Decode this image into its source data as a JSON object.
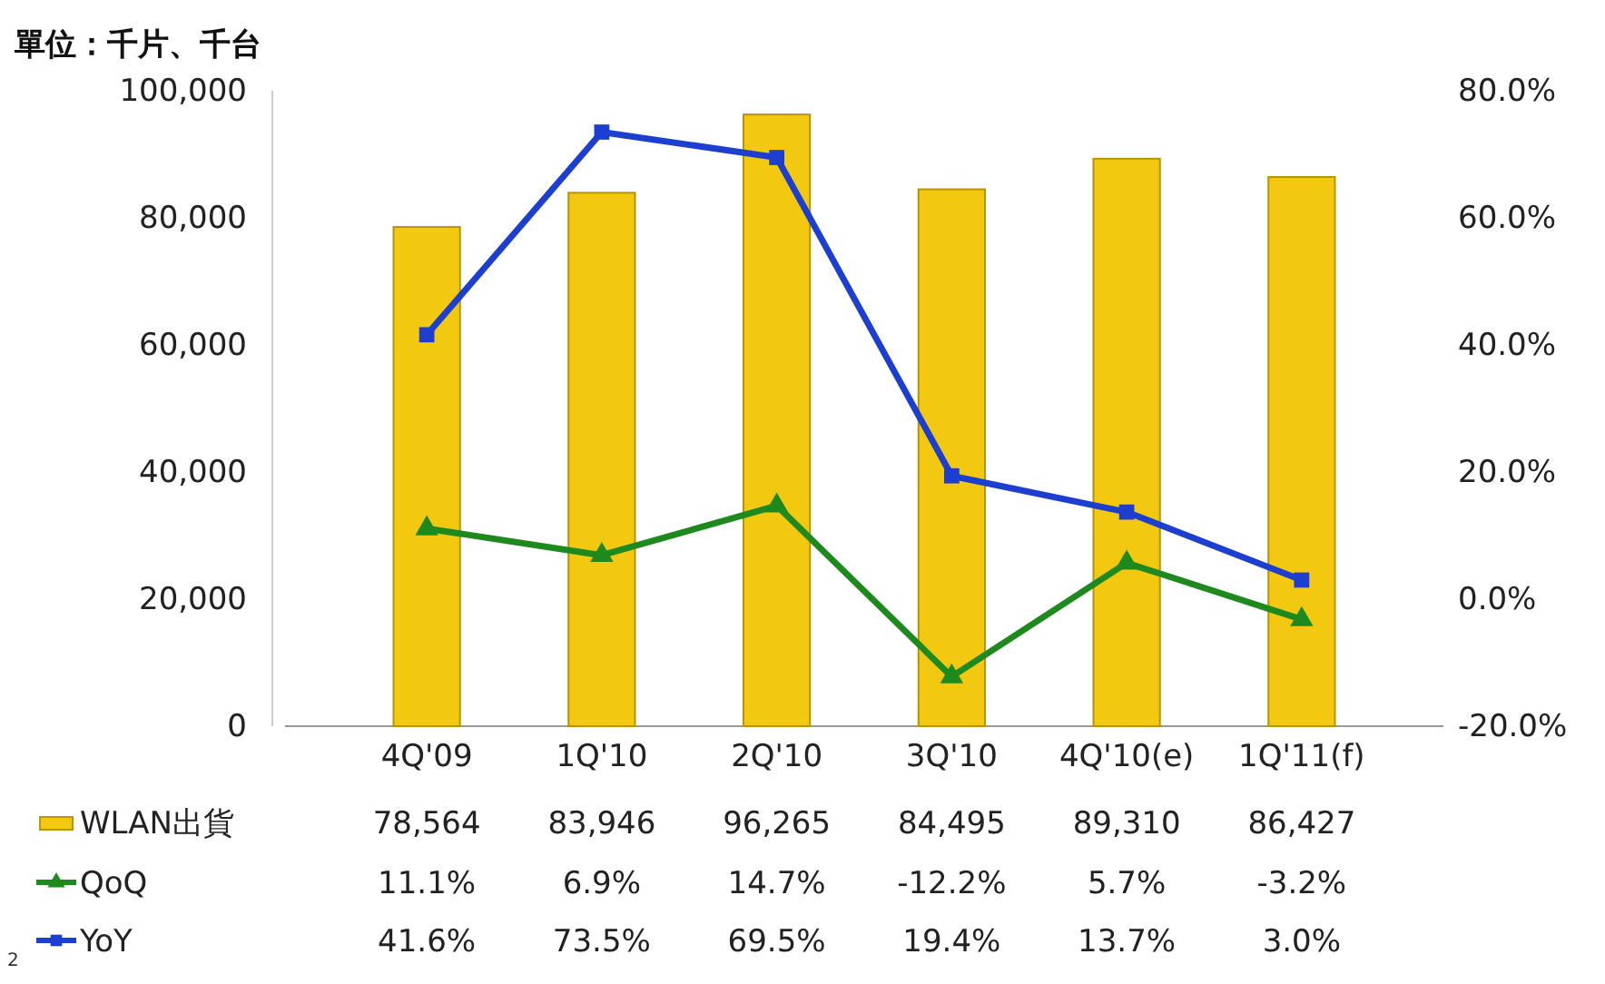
{
  "chart_data": {
    "type": "bar",
    "categories": [
      "4Q'09",
      "1Q'10",
      "2Q'10",
      "3Q'10",
      "4Q'10(e)",
      "1Q'11(f)"
    ],
    "series": [
      {
        "name": "WLAN出貨",
        "color": "#f2c811",
        "values": [
          78564,
          83946,
          96265,
          84495,
          89310,
          86427
        ],
        "value_labels": [
          "78,564",
          "83,946",
          "96,265",
          "84,495",
          "89,310",
          "86,427"
        ]
      },
      {
        "name": "QoQ",
        "type": "line",
        "axis": "y2",
        "color": "#1e8a1e",
        "marker": "triangle",
        "values": [
          11.1,
          6.9,
          14.7,
          -12.2,
          5.7,
          -3.2
        ],
        "value_labels": [
          "11.1%",
          "6.9%",
          "14.7%",
          "-12.2%",
          "5.7%",
          "-3.2%"
        ]
      },
      {
        "name": "YoY",
        "type": "line",
        "axis": "y2",
        "color": "#1c3fd0",
        "marker": "square",
        "values": [
          41.6,
          73.5,
          69.5,
          19.4,
          13.7,
          3.0
        ],
        "value_labels": [
          "41.6%",
          "73.5%",
          "69.5%",
          "19.4%",
          "13.7%",
          "3.0%"
        ]
      }
    ],
    "ylim": [
      0,
      100000
    ],
    "yticks": [
      0,
      {
        "value": 20000,
        "label": "20,000"
      },
      {
        "value": 40000,
        "label": "40,000"
      },
      {
        "value": 60000,
        "label": "60,000"
      },
      {
        "value": 80000,
        "label": "80,000"
      },
      {
        "value": 100000,
        "label": "100,000"
      }
    ],
    "y2lim": [
      -20,
      80
    ],
    "y2ticks": [
      {
        "value": -20,
        "label": "-20.0%"
      },
      {
        "value": 0,
        "label": "0.0%"
      },
      {
        "value": 20,
        "label": "20.0%"
      },
      {
        "value": 40,
        "label": "40.0%"
      },
      {
        "value": 60,
        "label": "60.0%"
      },
      {
        "value": 80,
        "label": "80.0%"
      }
    ],
    "legend": "bottom",
    "grid": false,
    "line_style": "solid",
    "annotations": [
      "單位：千片、千台",
      "2"
    ]
  }
}
